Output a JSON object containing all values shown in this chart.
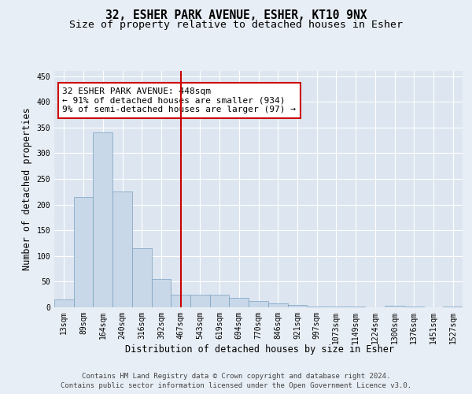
{
  "title1": "32, ESHER PARK AVENUE, ESHER, KT10 9NX",
  "title2": "Size of property relative to detached houses in Esher",
  "xlabel": "Distribution of detached houses by size in Esher",
  "ylabel": "Number of detached properties",
  "categories": [
    "13sqm",
    "89sqm",
    "164sqm",
    "240sqm",
    "316sqm",
    "392sqm",
    "467sqm",
    "543sqm",
    "619sqm",
    "694sqm",
    "770sqm",
    "846sqm",
    "921sqm",
    "997sqm",
    "1073sqm",
    "1149sqm",
    "1224sqm",
    "1300sqm",
    "1376sqm",
    "1451sqm",
    "1527sqm"
  ],
  "values": [
    15,
    215,
    340,
    225,
    115,
    55,
    25,
    25,
    25,
    18,
    12,
    8,
    5,
    2,
    2,
    2,
    0,
    3,
    1,
    0,
    2
  ],
  "bar_color": "#c8d8e8",
  "bar_edge_color": "#7aa0c0",
  "vline_color": "#cc0000",
  "annotation_text": "32 ESHER PARK AVENUE: 448sqm\n← 91% of detached houses are smaller (934)\n9% of semi-detached houses are larger (97) →",
  "annotation_box_color": "#ffffff",
  "annotation_box_edge": "#cc0000",
  "bg_color": "#e8eef5",
  "plot_bg_color": "#dde6f0",
  "grid_color": "#ffffff",
  "ylim": [
    0,
    460
  ],
  "yticks": [
    0,
    50,
    100,
    150,
    200,
    250,
    300,
    350,
    400,
    450
  ],
  "footer1": "Contains HM Land Registry data © Crown copyright and database right 2024.",
  "footer2": "Contains public sector information licensed under the Open Government Licence v3.0.",
  "title_fontsize": 10.5,
  "subtitle_fontsize": 9.5,
  "tick_fontsize": 7,
  "ylabel_fontsize": 8.5,
  "xlabel_fontsize": 8.5,
  "footer_fontsize": 6.5
}
